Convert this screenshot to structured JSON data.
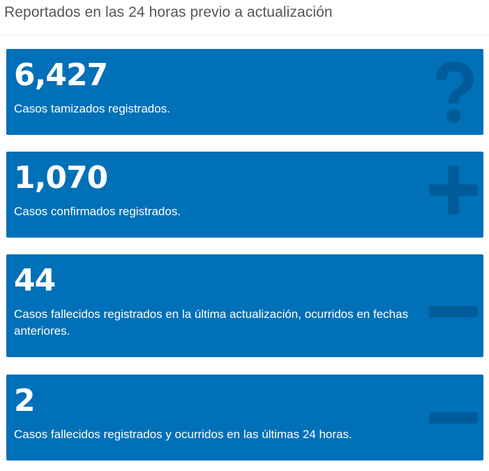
{
  "header": {
    "title": "Reportados en las 24 horas previo a actualización"
  },
  "colors": {
    "card_background": "#0070b8",
    "icon_shade": "#005c99",
    "text": "#ffffff"
  },
  "cards": [
    {
      "value": "6,427",
      "description": "Casos tamizados registrados.",
      "icon": "question-icon"
    },
    {
      "value": "1,070",
      "description": "Casos confirmados registrados.",
      "icon": "plus-icon"
    },
    {
      "value": "44",
      "description": "Casos fallecidos registrados en la última actualización, ocurridos en fechas anteriores.",
      "icon": "minus-icon"
    },
    {
      "value": "2",
      "description": "Casos fallecidos registrados y ocurridos en las últimas 24 horas.",
      "icon": "minus-icon"
    }
  ]
}
